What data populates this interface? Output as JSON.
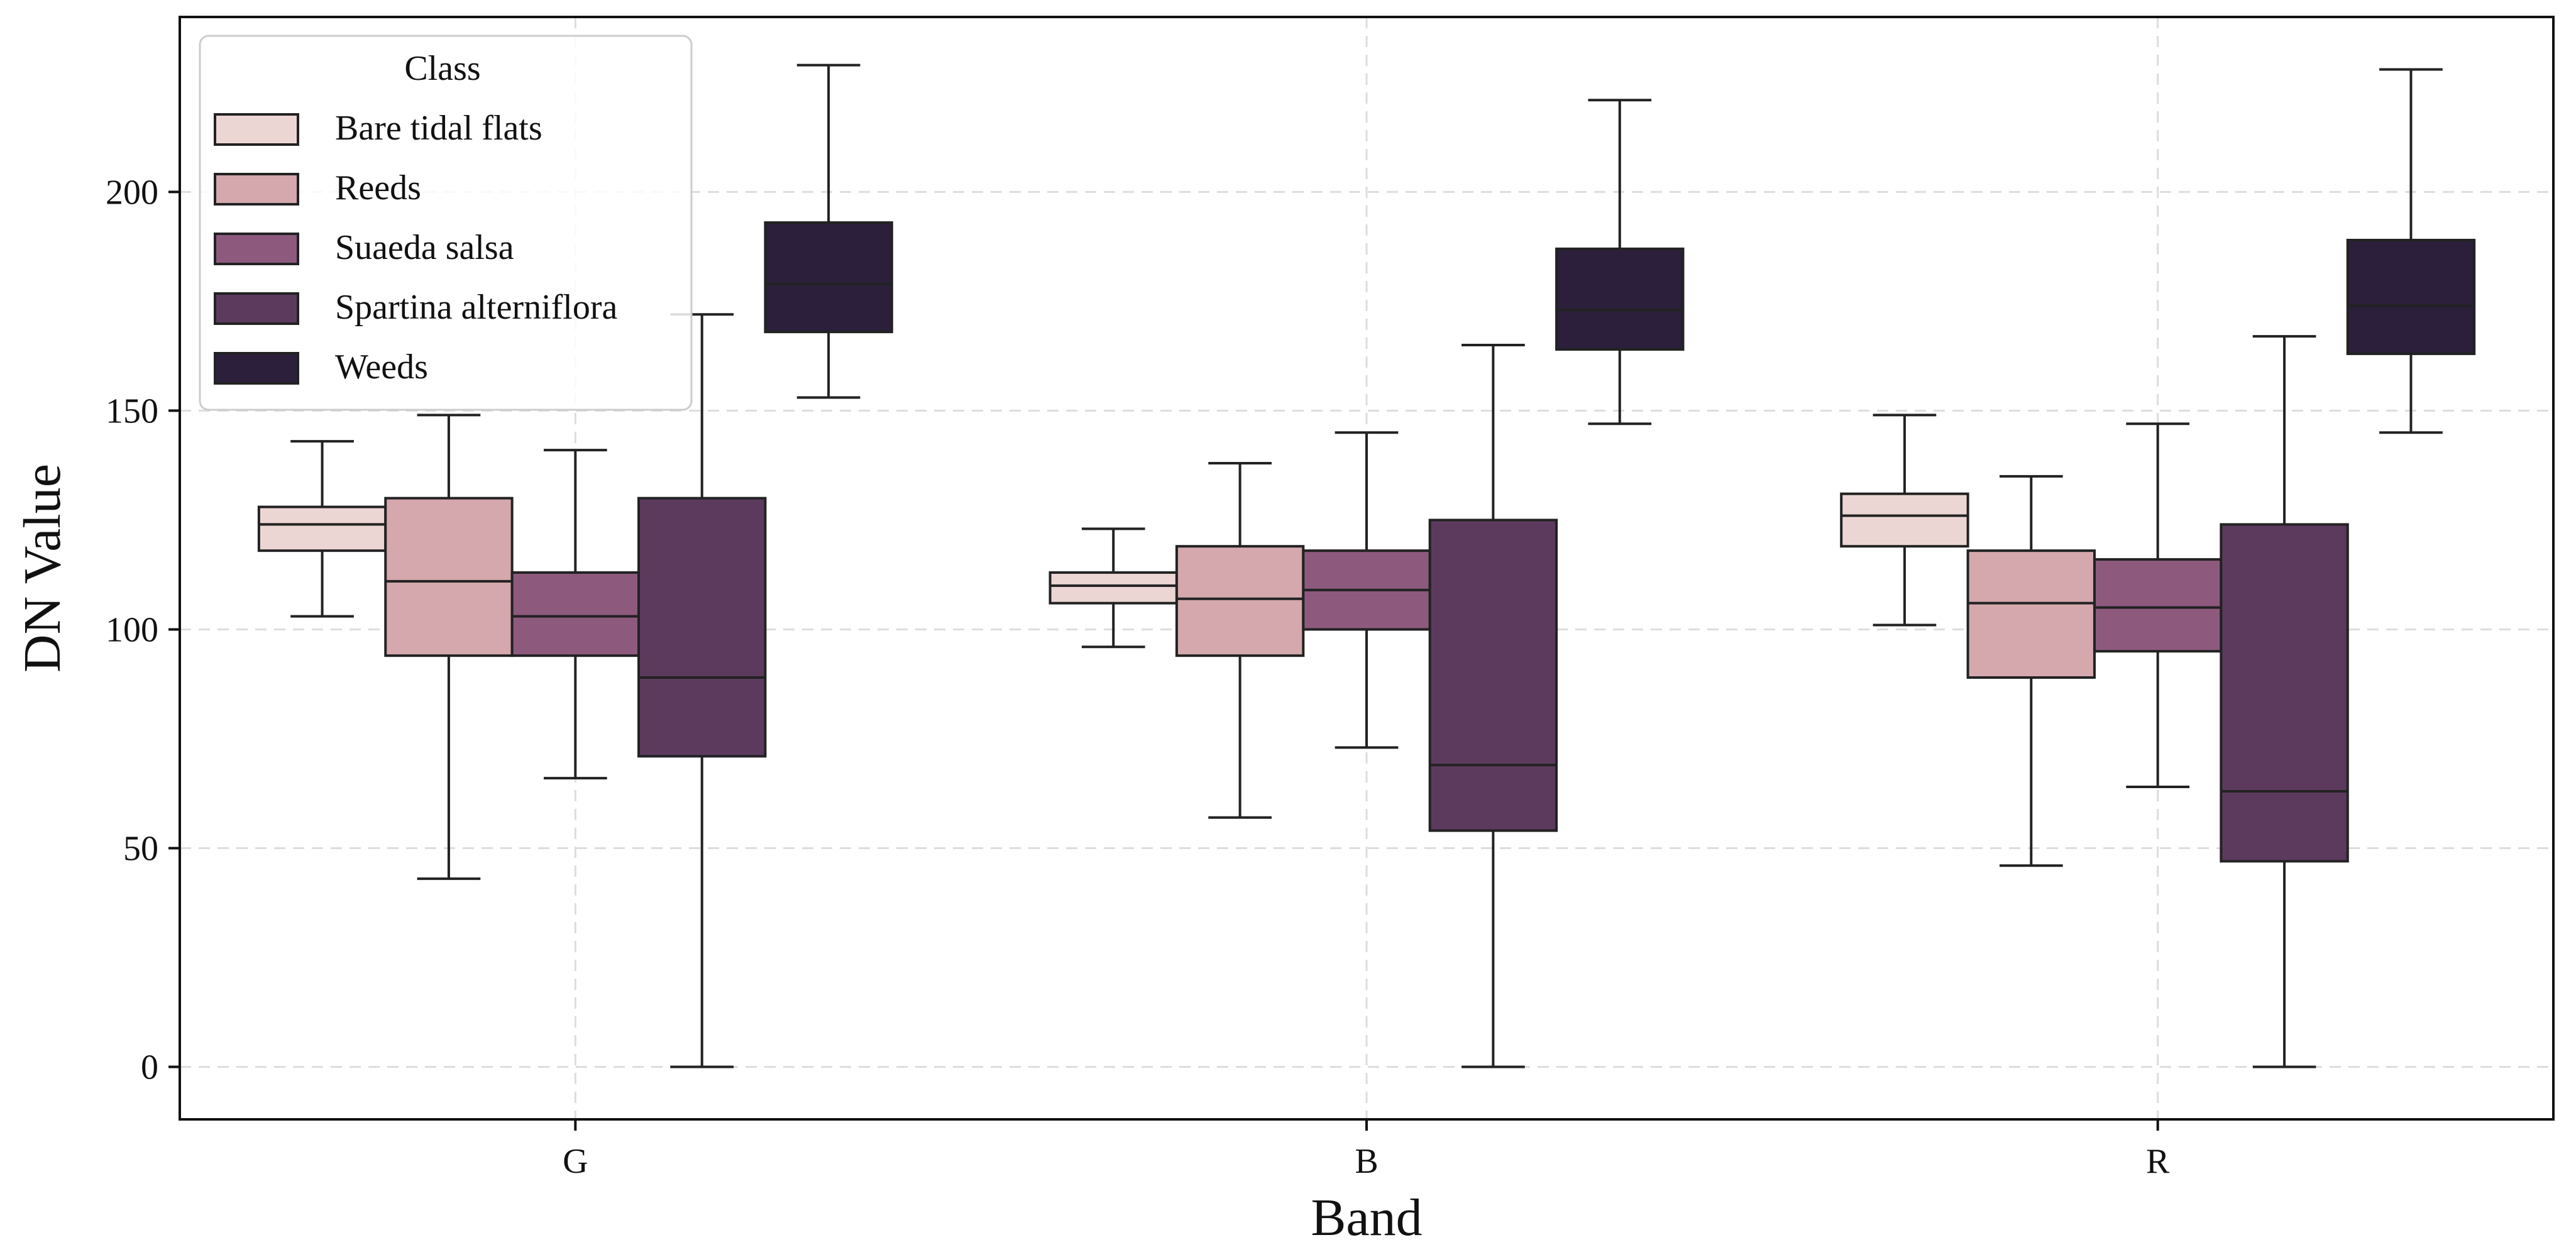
{
  "chart_data": {
    "type": "boxplot",
    "title": "",
    "xlabel": "Band",
    "ylabel": "DN Value",
    "ylim": [
      -12,
      240
    ],
    "yticks": [
      0,
      50,
      100,
      150,
      200
    ],
    "grid": true,
    "legend": {
      "title": "Class",
      "position": "top-left"
    },
    "categories": [
      "G",
      "B",
      "R"
    ],
    "series": [
      {
        "name": "Bare tidal flats",
        "color": "#ecd6d3",
        "boxes": [
          {
            "min": 103,
            "q1": 118,
            "median": 124,
            "q3": 128,
            "max": 143
          },
          {
            "min": 96,
            "q1": 106,
            "median": 110,
            "q3": 113,
            "max": 123
          },
          {
            "min": 101,
            "q1": 119,
            "median": 126,
            "q3": 131,
            "max": 149
          }
        ]
      },
      {
        "name": "Reeds",
        "color": "#d4a8ac",
        "boxes": [
          {
            "min": 43,
            "q1": 94,
            "median": 111,
            "q3": 130,
            "max": 149
          },
          {
            "min": 57,
            "q1": 94,
            "median": 107,
            "q3": 119,
            "max": 138
          },
          {
            "min": 46,
            "q1": 89,
            "median": 106,
            "q3": 118,
            "max": 135
          }
        ]
      },
      {
        "name": "Suaeda salsa",
        "color": "#8d5a7e",
        "boxes": [
          {
            "min": 66,
            "q1": 94,
            "median": 103,
            "q3": 113,
            "max": 141
          },
          {
            "min": 73,
            "q1": 100,
            "median": 109,
            "q3": 118,
            "max": 145
          },
          {
            "min": 64,
            "q1": 95,
            "median": 105,
            "q3": 116,
            "max": 147
          }
        ]
      },
      {
        "name": "Spartina alterniflora",
        "color": "#5c3a5e",
        "boxes": [
          {
            "min": 0,
            "q1": 71,
            "median": 89,
            "q3": 130,
            "max": 172
          },
          {
            "min": 0,
            "q1": 54,
            "median": 69,
            "q3": 125,
            "max": 165
          },
          {
            "min": 0,
            "q1": 47,
            "median": 63,
            "q3": 124,
            "max": 167
          }
        ]
      },
      {
        "name": "Weeds",
        "color": "#2c1f3b",
        "boxes": [
          {
            "min": 153,
            "q1": 168,
            "median": 179,
            "q3": 193,
            "max": 229
          },
          {
            "min": 147,
            "q1": 164,
            "median": 173,
            "q3": 187,
            "max": 221
          },
          {
            "min": 145,
            "q1": 163,
            "median": 174,
            "q3": 189,
            "max": 228
          }
        ]
      }
    ]
  }
}
